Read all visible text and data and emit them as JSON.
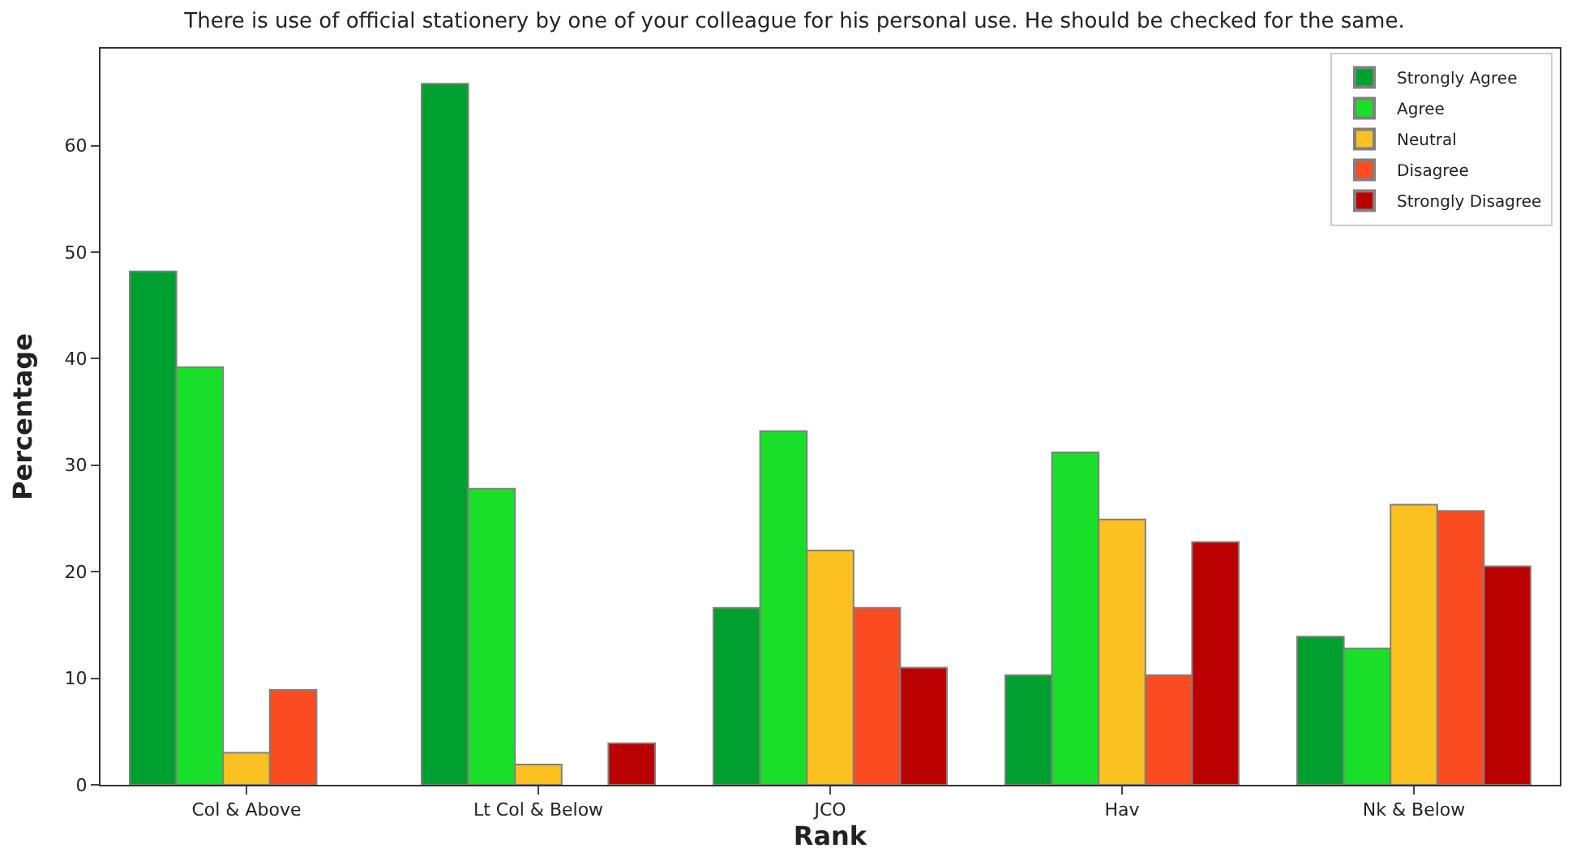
{
  "chart_data": {
    "type": "bar",
    "title": "There is use of official stationery by one of your colleague for his personal use. He should be checked for the same.",
    "xlabel": "Rank",
    "ylabel": "Percentage",
    "categories": [
      "Col & Above",
      "Lt Col & Below",
      "JCO",
      "Hav",
      "Nk & Below"
    ],
    "series": [
      {
        "name": "Strongly Agree",
        "color": "#00a030",
        "values": [
          48.2,
          65.8,
          16.6,
          10.3,
          13.9
        ]
      },
      {
        "name": "Agree",
        "color": "#1adf2a",
        "values": [
          39.2,
          27.8,
          33.2,
          31.2,
          12.8
        ]
      },
      {
        "name": "Neutral",
        "color": "#fbc120",
        "values": [
          3.0,
          1.9,
          22.0,
          24.9,
          26.3
        ]
      },
      {
        "name": "Disagree",
        "color": "#fb4b20",
        "values": [
          8.9,
          null,
          16.6,
          10.3,
          25.7
        ]
      },
      {
        "name": "Strongly Disagree",
        "color": "#bb0000",
        "values": [
          null,
          3.9,
          11.0,
          22.8,
          20.5
        ]
      }
    ],
    "ylim": [
      0,
      69.1
    ],
    "yticks": [
      0,
      10,
      20,
      30,
      40,
      50,
      60
    ],
    "legend": "top right"
  }
}
